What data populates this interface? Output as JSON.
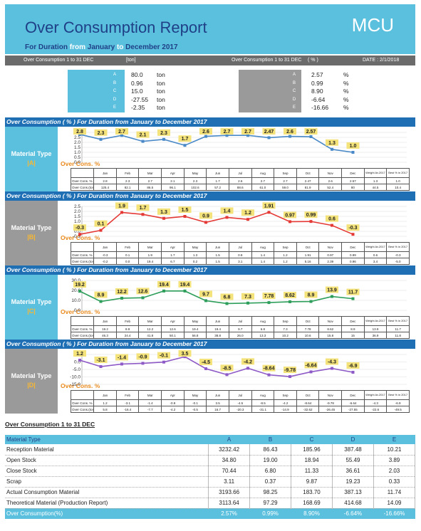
{
  "header": {
    "title": "Over Consumption Report",
    "logo": "MCU",
    "duration_prefix": "For Duration",
    "from_word": "from",
    "from_month": "January",
    "to_word": "to",
    "to_month": "December 2017"
  },
  "subheader": {
    "left_caption": "Over Consumption 1 to 31 DEC",
    "left_unit": "[ton]",
    "right_caption": "Over Consumption 1 to 31 DEC",
    "right_unit": "( % )",
    "date": "DATE : 2/1/2018"
  },
  "summary_ton": [
    {
      "code": "A",
      "value": "80.0",
      "unit": "ton"
    },
    {
      "code": "B",
      "value": "0.96",
      "unit": "ton"
    },
    {
      "code": "C",
      "value": "15.0",
      "unit": "ton"
    },
    {
      "code": "D",
      "value": "-27.55",
      "unit": "ton"
    },
    {
      "code": "E",
      "value": "-2.35",
      "unit": "ton"
    }
  ],
  "summary_pct": [
    {
      "code": "A",
      "value": "2.57",
      "unit": "%"
    },
    {
      "code": "B",
      "value": "0.99",
      "unit": "%"
    },
    {
      "code": "C",
      "value": "8.90",
      "unit": "%"
    },
    {
      "code": "D",
      "value": "-6.64",
      "unit": "%"
    },
    {
      "code": "E",
      "value": "-16.66",
      "unit": "%"
    }
  ],
  "months": [
    "Jan",
    "Feb",
    "Mar",
    "Apr",
    "May",
    "Jun",
    "Jul",
    "Aug",
    "Sep",
    "Oct",
    "Nov",
    "Dec"
  ],
  "sections": [
    {
      "title": "Over Consumption ( % ) For Duration from January to December 2017",
      "material_type": "Material Type",
      "material": "|A|",
      "oc_label": "Over Cons. %",
      "row_pct_label": "Over Cons. %",
      "row_ton_label": "Over Cons.(ton)",
      "weight_label": "Weight Av.2017",
      "best_label": "Best % in 2017",
      "pct_labels": [
        "2.8",
        "2.3",
        "2.7",
        "2.1",
        "2.3",
        "1.7",
        "2.6",
        "2.7",
        "2.7",
        "2.47",
        "2.6",
        "2.57",
        "1.3",
        "1.0"
      ],
      "ton_labels": [
        "125.4",
        "82.1",
        "86.5",
        "96.1",
        "102.6",
        "57.2",
        "88.6",
        "61.0",
        "59.0",
        "81.9",
        "52.4",
        "80",
        "44.5",
        "10.4"
      ],
      "tbl_pct": [
        "2.8",
        "2.3",
        "2.7",
        "2.1",
        "2.3",
        "1.7",
        "2.6",
        "2.7",
        "2.7",
        "2.47",
        "2.6",
        "2.57",
        "1.3",
        "1.0"
      ],
      "point_labels": [
        "2.8",
        "2.3",
        "2.7",
        "2.1",
        "2.3",
        "1.7",
        "2.6",
        "2.7",
        "2.7",
        "2.47",
        "2.6",
        "2.57",
        "1.3",
        "1.0"
      ],
      "y_ticks": [
        "3.0",
        "2.5",
        "2.0",
        "1.5",
        "1.0",
        "0.5",
        "0.0"
      ],
      "colors": {
        "band": "#5bc0de",
        "label_bg": "#5bc0de",
        "line": "#4a89c8",
        "marker": "#4a89c8"
      }
    },
    {
      "title": "Over Consumption ( % ) For Duration from January to December 2017",
      "material_type": "Material Type",
      "material": "|B|",
      "oc_label": "Over Cons. %",
      "row_pct_label": "Over Cons. %",
      "row_ton_label": "Over Cons.(ton)",
      "weight_label": "Weight Av.2017",
      "best_label": "Best % in 2017",
      "tbl_pct": [
        "-0.3",
        "0.1",
        "1.9",
        "1.7",
        "1.3",
        "1.5",
        "0.9",
        "1.4",
        "1.2",
        "1.91",
        "0.97",
        "0.99",
        "0.6",
        "-0.3"
      ],
      "ton_labels": [
        "-0.2",
        "0.0",
        "19.4",
        "6.7",
        "0.2",
        "1.5",
        "3.1",
        "1.4",
        "1.2",
        "5.16",
        "2.39",
        "0.96",
        "3.4",
        "-5.0"
      ],
      "point_labels": [
        "-0.3",
        "0.1",
        "1.9",
        "1.7",
        "1.3",
        "1.5",
        "0.9",
        "1.4",
        "1.2",
        "1.91",
        "0.97",
        "0.99",
        "0.6",
        "-0.3"
      ],
      "y_ticks": [
        "2.5",
        "2.0",
        "1.5",
        "1.0",
        "0.5",
        "0.0",
        "-0.5"
      ],
      "colors": {
        "band": "#9a9a9a",
        "label_bg": "#9a9a9a",
        "line": "#e53935",
        "marker": "#e53935"
      }
    },
    {
      "title": "Over Consumption ( % ) For Duration from January to December 2017",
      "material_type": "Material Type",
      "material": "|C|",
      "oc_label": "Over Cons. %",
      "row_pct_label": "Over Cons. %",
      "row_ton_label": "Over Cons.(ton)",
      "weight_label": "Weight Av.2017",
      "best_label": "Best % in 2017",
      "tbl_pct": [
        "19.2",
        "8.9",
        "12.2",
        "12.6",
        "19.4",
        "19.4",
        "9.7",
        "6.8",
        "7.3",
        "7.78",
        "8.62",
        "8.9",
        "13.9",
        "11.7"
      ],
      "ton_labels": [
        "46.3",
        "24.4",
        "41.8",
        "50.1",
        "56.8",
        "38.8",
        "26.0",
        "13.3",
        "10.2",
        "10.6",
        "15.8",
        "15",
        "36.9",
        "11.8"
      ],
      "point_labels": [
        "19.2",
        "8.9",
        "12.2",
        "12.6",
        "19.4",
        "19.4",
        "9.7",
        "6.8",
        "7.3",
        "7.78",
        "8.62",
        "8.9",
        "13.9",
        "11.7"
      ],
      "y_ticks": [
        "30.0",
        "20.0",
        "10.0",
        "0.0"
      ],
      "colors": {
        "band": "#5bc0de",
        "label_bg": "#5bc0de",
        "line": "#2e9e5b",
        "marker": "#2e9e5b"
      }
    },
    {
      "title": "Over Consumption ( % ) For Duration from January to December 2017",
      "material_type": "Material Type",
      "material": "|D|",
      "oc_label": "Over Cons. %",
      "row_pct_label": "Over Cons. %",
      "row_ton_label": "Over Cons.(ton)",
      "weight_label": "Weight Av.2017",
      "best_label": "Best % in 2017",
      "tbl_pct": [
        "1.2",
        "-3.1",
        "-1.4",
        "-0.9",
        "-0.1",
        "3.5",
        "-4.5",
        "-8.5",
        "-4.2",
        "-8.64",
        "-9.78",
        "-6.64",
        "-4.3",
        "-6.9"
      ],
      "ton_labels": [
        "5.8",
        "-16.4",
        "-7.7",
        "-4.2",
        "-0.5",
        "16.7",
        "-20.3",
        "-31.1",
        "-14.9",
        "-32.62",
        "-26.45",
        "-27.55",
        "-22.6",
        "-49.5"
      ],
      "point_labels": [
        "1.2",
        "-3.1",
        "-1.4",
        "-0.9",
        "-0.1",
        "3.5",
        "-4.5",
        "-8.5",
        "-4.2",
        "-8.64",
        "-9.78",
        "-6.64",
        "-4.3",
        "-6.9"
      ],
      "y_ticks": [
        "5.0",
        "0.0",
        "-5.0",
        "-10.0",
        "-15.0"
      ],
      "colors": {
        "band": "#9a9a9a",
        "label_bg": "#9a9a9a",
        "line": "#8e5ac7",
        "marker": "#8e5ac7"
      }
    }
  ],
  "chart_data": [
    {
      "type": "line",
      "title": "Over Consumption ( % ) For Duration from January to December 2017",
      "categories": [
        "Jan",
        "Feb",
        "Mar",
        "Apr",
        "May",
        "Jun",
        "Jul",
        "Aug",
        "Sep",
        "Oct",
        "Nov",
        "Dec",
        "Weight Av.2017",
        "Best % in 2017"
      ],
      "values": [
        2.8,
        2.3,
        2.7,
        2.1,
        2.3,
        1.7,
        2.6,
        2.7,
        2.7,
        2.47,
        2.6,
        2.57,
        1.3,
        1.0
      ],
      "ylim": [
        0,
        3.0
      ]
    },
    {
      "type": "line",
      "title": "Over Consumption ( % ) For Duration from January to December 2017",
      "categories": [
        "Jan",
        "Feb",
        "Mar",
        "Apr",
        "May",
        "Jun",
        "Jul",
        "Aug",
        "Sep",
        "Oct",
        "Nov",
        "Dec",
        "Weight Av.2017",
        "Best % in 2017"
      ],
      "values": [
        -0.3,
        0.1,
        1.9,
        1.7,
        1.3,
        1.5,
        0.9,
        1.4,
        1.2,
        1.91,
        0.97,
        0.99,
        0.6,
        -0.3
      ],
      "ylim": [
        -0.5,
        2.5
      ]
    },
    {
      "type": "line",
      "title": "Over Consumption ( % ) For Duration from January to December 2017",
      "categories": [
        "Jan",
        "Feb",
        "Mar",
        "Apr",
        "May",
        "Jun",
        "Jul",
        "Aug",
        "Sep",
        "Oct",
        "Nov",
        "Dec",
        "Weight Av.2017",
        "Best % in 2017"
      ],
      "values": [
        19.2,
        8.9,
        12.2,
        12.6,
        19.4,
        19.4,
        9.7,
        6.8,
        7.3,
        7.78,
        8.62,
        8.9,
        13.9,
        11.7
      ],
      "ylim": [
        0,
        30
      ]
    },
    {
      "type": "line",
      "title": "Over Consumption ( % ) For Duration from January to December 2017",
      "categories": [
        "Jan",
        "Feb",
        "Mar",
        "Apr",
        "May",
        "Jun",
        "Jul",
        "Aug",
        "Sep",
        "Oct",
        "Nov",
        "Dec",
        "Weight Av.2017",
        "Best % in 2017"
      ],
      "values": [
        1.2,
        -3.1,
        -1.4,
        -0.9,
        -0.1,
        3.5,
        -4.5,
        -8.5,
        -4.2,
        -8.64,
        -9.78,
        -6.64,
        -4.3,
        -6.9
      ],
      "ylim": [
        -15,
        5
      ]
    }
  ],
  "bottom": {
    "title": "Over Consumption 1 to 31 DEC",
    "header": [
      "Material Type",
      "A",
      "B",
      "C",
      "D",
      "E"
    ],
    "rows": [
      [
        "Reception Material",
        "3232.42",
        "86.43",
        "185.96",
        "387.48",
        "10.21"
      ],
      [
        "Open Stock",
        "34.80",
        "19.00",
        "18.94",
        "55.49",
        "3.89"
      ],
      [
        "Close Stock",
        "70.44",
        "6.80",
        "11.33",
        "36.61",
        "2.03"
      ],
      [
        "Scrap",
        "3.11",
        "0.37",
        "9.87",
        "19.23",
        "0.33"
      ],
      [
        "Actual Consumption Material",
        "3193.66",
        "98.25",
        "183.70",
        "387.13",
        "11.74"
      ],
      [
        "Theoretical  Material (Production Report)",
        "3113.64",
        "97.29",
        "168.69",
        "414.68",
        "14.09"
      ]
    ],
    "footer": [
      "Over Consumption(%)",
      "2.57%",
      "0.99%",
      "8.90%",
      "-6.64%",
      "-16.66%"
    ]
  }
}
